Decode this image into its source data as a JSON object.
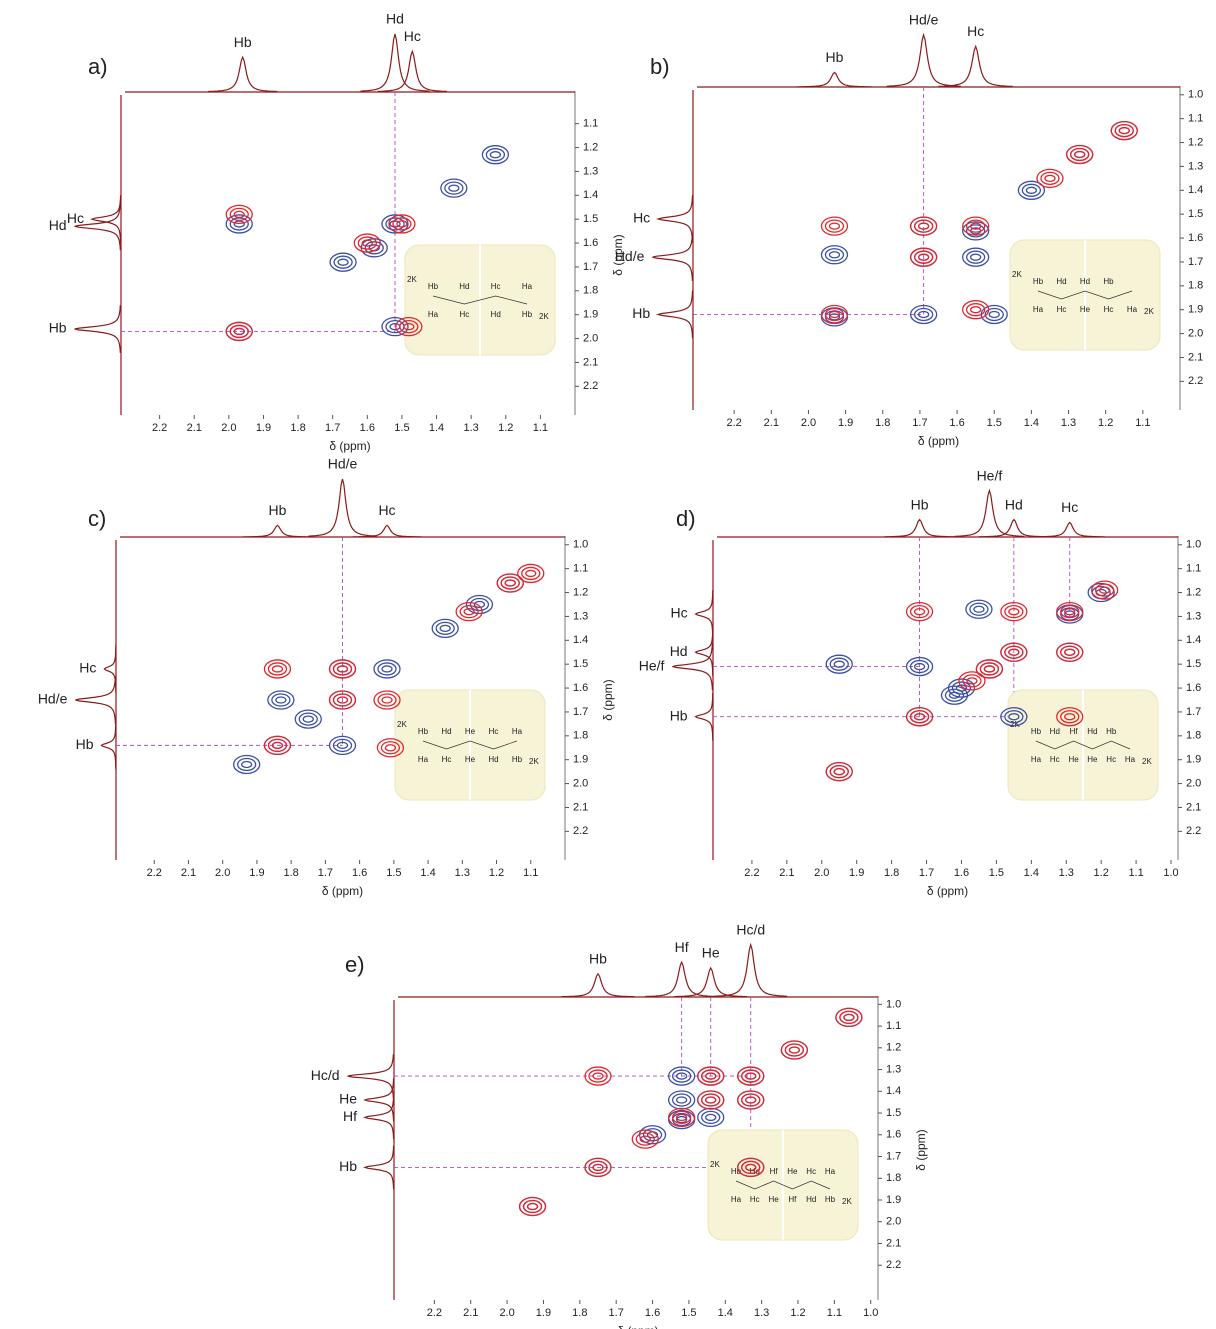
{
  "chart_data": [
    {
      "type": "contour",
      "panel": "a)",
      "xlabel": "δ (ppm)",
      "ylabel": "δ (ppm)",
      "xlim": [
        2.3,
        1.0
      ],
      "ylim": [
        0.98,
        2.32
      ],
      "xticks": [
        2.2,
        2.1,
        {
          "value": 2,
          "label": "2.0"
        },
        1.9,
        1.8,
        1.7,
        1.6,
        1.5,
        1.4,
        1.3,
        1.2,
        1.1
      ],
      "yticks": [
        1.1,
        1.2,
        1.3,
        1.4,
        1.5,
        1.6,
        1.7,
        1.8,
        1.9,
        {
          "value": 2,
          "label": "2.0"
        },
        2.1,
        2.2
      ],
      "top_peaks": {
        "labels": [
          "Hb",
          "Hd",
          "Hc"
        ],
        "x": [
          1.96,
          1.52,
          1.47
        ],
        "height": [
          0.6,
          1.0,
          0.7
        ]
      },
      "left_peaks": {
        "labels": [
          "Hc",
          "Hd",
          "Hb"
        ],
        "y": [
          1.5,
          1.53,
          1.96
        ],
        "height": [
          0.5,
          0.8,
          0.8
        ]
      },
      "series": [
        {
          "name": "blue",
          "color": "#3b4fa8",
          "points": [
            [
              1.97,
              1.52
            ],
            [
              1.97,
              1.97
            ],
            [
              1.52,
              1.95
            ],
            [
              1.52,
              1.52
            ],
            [
              1.35,
              1.37
            ],
            [
              1.23,
              1.23
            ],
            [
              1.67,
              1.68
            ],
            [
              1.58,
              1.62
            ]
          ]
        },
        {
          "name": "red",
          "color": "#e3262b",
          "points": [
            [
              1.97,
              1.48
            ],
            [
              1.97,
              1.97
            ],
            [
              1.48,
              1.95
            ],
            [
              1.5,
              1.52
            ],
            [
              1.6,
              1.6
            ]
          ]
        }
      ],
      "vguides": [
        [
          1.52,
          1.97
        ]
      ],
      "hguides": [
        [
          1.97,
          1.52
        ]
      ],
      "inset": {
        "top": [
          "Hb",
          "Hd",
          "Hc",
          "Ha"
        ],
        "bottom": [
          "Ha",
          "Hc",
          "Hd",
          "Hb"
        ],
        "charge": "2K"
      }
    },
    {
      "type": "contour",
      "panel": "b)",
      "xlabel": "δ (ppm)",
      "ylabel": "δ (ppm)",
      "xlim": [
        2.3,
        1.0
      ],
      "ylim": [
        0.98,
        2.32
      ],
      "xticks": [
        2.2,
        2.1,
        {
          "value": 2,
          "label": "2.0"
        },
        1.9,
        1.8,
        1.7,
        1.6,
        1.5,
        1.4,
        1.3,
        1.2,
        1.1
      ],
      "yticks": [
        {
          "value": 1,
          "label": "1.0"
        },
        1.1,
        1.2,
        1.3,
        1.4,
        1.5,
        1.6,
        1.7,
        1.8,
        1.9,
        {
          "value": 2,
          "label": "2.0"
        },
        2.1,
        2.2
      ],
      "top_peaks": {
        "labels": [
          "Hb",
          "Hd/e",
          "Hc"
        ],
        "x": [
          1.93,
          1.69,
          1.55
        ],
        "height": [
          0.25,
          0.9,
          0.7
        ]
      },
      "left_peaks": {
        "labels": [
          "Hc",
          "Hd/e",
          "Hb"
        ],
        "y": [
          1.52,
          1.68,
          1.92
        ],
        "height": [
          0.6,
          0.7,
          0.6
        ]
      },
      "series": [
        {
          "name": "blue",
          "color": "#3b4fa8",
          "points": [
            [
              1.93,
              1.93
            ],
            [
              1.93,
              1.67
            ],
            [
              1.69,
              1.55
            ],
            [
              1.69,
              1.68
            ],
            [
              1.55,
              1.57
            ],
            [
              1.55,
              1.68
            ],
            [
              1.69,
              1.92
            ],
            [
              1.5,
              1.92
            ],
            [
              1.27,
              1.25
            ],
            [
              1.15,
              1.15
            ],
            [
              1.4,
              1.4
            ]
          ]
        },
        {
          "name": "red",
          "color": "#e3262b",
          "points": [
            [
              1.93,
              1.55
            ],
            [
              1.93,
              1.92
            ],
            [
              1.69,
              1.55
            ],
            [
              1.55,
              1.55
            ],
            [
              1.55,
              1.9
            ],
            [
              1.27,
              1.25
            ],
            [
              1.15,
              1.15
            ],
            [
              1.35,
              1.35
            ],
            [
              1.69,
              1.68
            ]
          ]
        }
      ],
      "vguides": [
        [
          1.69,
          1.92
        ]
      ],
      "hguides": [
        [
          1.92,
          1.69
        ]
      ],
      "inset": {
        "top": [
          "Hb",
          "Hd",
          "Hd",
          "Hb"
        ],
        "bottom": [
          "Ha",
          "Hc",
          "He",
          "Hc",
          "Ha"
        ],
        "charge": "2K"
      }
    },
    {
      "type": "contour",
      "panel": "c)",
      "xlabel": "δ (ppm)",
      "ylabel": "δ (ppm)",
      "xlim": [
        2.3,
        1.0
      ],
      "ylim": [
        0.98,
        2.32
      ],
      "xticks": [
        2.2,
        2.1,
        {
          "value": 2,
          "label": "2.0"
        },
        1.9,
        1.8,
        1.7,
        1.6,
        1.5,
        1.4,
        1.3,
        1.2,
        1.1
      ],
      "yticks": [
        {
          "value": 1,
          "label": "1.0"
        },
        1.1,
        1.2,
        1.3,
        1.4,
        1.5,
        1.6,
        1.7,
        1.8,
        1.9,
        {
          "value": 2,
          "label": "2.0"
        },
        2.1,
        2.2
      ],
      "top_peaks": {
        "labels": [
          "Hb",
          "Hd/e",
          "Hc"
        ],
        "x": [
          1.84,
          1.65,
          1.52
        ],
        "height": [
          0.2,
          1.0,
          0.2
        ]
      },
      "left_peaks": {
        "labels": [
          "Hc",
          "Hd/e",
          "Hb"
        ],
        "y": [
          1.52,
          1.65,
          1.84
        ],
        "height": [
          0.2,
          0.7,
          0.25
        ]
      },
      "series": [
        {
          "name": "blue",
          "color": "#3b4fa8",
          "points": [
            [
              1.84,
              1.84
            ],
            [
              1.65,
              1.52
            ],
            [
              1.65,
              1.84
            ],
            [
              1.65,
              1.65
            ],
            [
              1.52,
              1.52
            ],
            [
              1.75,
              1.73
            ],
            [
              1.93,
              1.92
            ],
            [
              1.35,
              1.35
            ],
            [
              1.16,
              1.16
            ],
            [
              1.25,
              1.25
            ],
            [
              1.83,
              1.65
            ]
          ]
        },
        {
          "name": "red",
          "color": "#e3262b",
          "points": [
            [
              1.84,
              1.52
            ],
            [
              1.51,
              1.85
            ],
            [
              1.84,
              1.84
            ],
            [
              1.65,
              1.65
            ],
            [
              1.52,
              1.65
            ],
            [
              1.65,
              1.52
            ],
            [
              1.28,
              1.28
            ],
            [
              1.16,
              1.16
            ],
            [
              1.1,
              1.12
            ]
          ]
        }
      ],
      "vguides": [
        [
          1.65,
          1.84
        ]
      ],
      "hguides": [
        [
          1.84,
          1.65
        ]
      ],
      "inset": {
        "top": [
          "Hb",
          "Hd",
          "He",
          "Hc",
          "Ha"
        ],
        "bottom": [
          "Ha",
          "Hc",
          "He",
          "Hd",
          "Hb"
        ],
        "charge": "2K"
      }
    },
    {
      "type": "contour",
      "panel": "d)",
      "xlabel": "δ (ppm)",
      "ylabel": "δ (ppm)",
      "xlim": [
        2.3,
        0.98
      ],
      "ylim": [
        0.98,
        2.32
      ],
      "xticks": [
        2.2,
        2.1,
        {
          "value": 2,
          "label": "2.0"
        },
        1.9,
        1.8,
        1.7,
        1.6,
        1.5,
        1.4,
        1.3,
        1.2,
        1.1,
        {
          "value": 1,
          "label": "1.0"
        }
      ],
      "yticks": [
        {
          "value": 1,
          "label": "1.0"
        },
        1.1,
        1.2,
        1.3,
        1.4,
        1.5,
        1.6,
        1.7,
        1.8,
        1.9,
        {
          "value": 2,
          "label": "2.0"
        },
        2.1,
        2.2
      ],
      "top_peaks": {
        "labels": [
          "Hb",
          "He/f",
          "Hd",
          "Hc"
        ],
        "x": [
          1.72,
          1.52,
          1.45,
          1.29
        ],
        "height": [
          0.3,
          0.8,
          0.3,
          0.25
        ]
      },
      "left_peaks": {
        "labels": [
          "Hc",
          "Hd",
          "He/f",
          "Hb"
        ],
        "y": [
          1.29,
          1.45,
          1.51,
          1.72
        ],
        "height": [
          0.3,
          0.3,
          0.7,
          0.3
        ]
      },
      "series": [
        {
          "name": "blue",
          "color": "#3b4fa8",
          "points": [
            [
              1.72,
              1.72
            ],
            [
              1.72,
              1.51
            ],
            [
              1.95,
              1.95
            ],
            [
              1.95,
              1.5
            ],
            [
              1.45,
              1.45
            ],
            [
              1.45,
              1.72
            ],
            [
              1.29,
              1.29
            ],
            [
              1.29,
              1.45
            ],
            [
              1.6,
              1.6
            ],
            [
              1.2,
              1.2
            ],
            [
              1.55,
              1.27
            ],
            [
              1.62,
              1.63
            ],
            [
              1.52,
              1.52
            ]
          ]
        },
        {
          "name": "red",
          "color": "#e3262b",
          "points": [
            [
              1.72,
              1.28
            ],
            [
              1.72,
              1.72
            ],
            [
              1.45,
              1.28
            ],
            [
              1.45,
              1.45
            ],
            [
              1.29,
              1.28
            ],
            [
              1.29,
              1.45
            ],
            [
              1.29,
              1.72
            ],
            [
              1.95,
              1.95
            ],
            [
              1.57,
              1.57
            ],
            [
              1.19,
              1.19
            ],
            [
              1.52,
              1.52
            ]
          ]
        }
      ],
      "vguides": [
        [
          1.72,
          1.72
        ],
        [
          1.45,
          1.73
        ],
        [
          1.29,
          1.3
        ]
      ],
      "hguides": [
        [
          1.51,
          1.72
        ],
        [
          1.72,
          1.45
        ]
      ],
      "inset": {
        "top": [
          "Hb",
          "Hd",
          "Hf",
          "Hd",
          "Hb"
        ],
        "bottom": [
          "Ha",
          "Hc",
          "He",
          "He",
          "Hc",
          "Ha"
        ],
        "charge": "2K"
      }
    },
    {
      "type": "contour",
      "panel": "e)",
      "xlabel": "δ (ppm)",
      "ylabel": "δ (ppm)",
      "xlim": [
        2.3,
        0.98
      ],
      "ylim": [
        0.98,
        2.36
      ],
      "xticks": [
        2.2,
        2.1,
        {
          "value": 2,
          "label": "2.0"
        },
        1.9,
        1.8,
        1.7,
        1.6,
        1.5,
        1.4,
        1.3,
        1.2,
        1.1,
        {
          "value": 1,
          "label": "1.0"
        }
      ],
      "yticks": [
        {
          "value": 1,
          "label": "1.0"
        },
        1.1,
        1.2,
        1.3,
        1.4,
        1.5,
        1.6,
        1.7,
        1.8,
        1.9,
        {
          "value": 2,
          "label": "2.0"
        },
        2.1,
        2.2
      ],
      "top_peaks": {
        "labels": [
          "Hb",
          "Hf",
          "He",
          "Hc/d"
        ],
        "x": [
          1.75,
          1.52,
          1.44,
          1.33
        ],
        "height": [
          0.4,
          0.6,
          0.5,
          0.9
        ]
      },
      "left_peaks": {
        "labels": [
          "Hc/d",
          "He",
          "Hf",
          "Hb"
        ],
        "y": [
          1.33,
          1.44,
          1.52,
          1.75
        ],
        "height": [
          0.8,
          0.5,
          0.5,
          0.5
        ]
      },
      "series": [
        {
          "name": "blue",
          "color": "#3b4fa8",
          "points": [
            [
              1.75,
              1.75
            ],
            [
              1.93,
              1.93
            ],
            [
              1.52,
              1.33
            ],
            [
              1.52,
              1.44
            ],
            [
              1.52,
              1.53
            ],
            [
              1.44,
              1.33
            ],
            [
              1.44,
              1.44
            ],
            [
              1.44,
              1.52
            ],
            [
              1.33,
              1.33
            ],
            [
              1.33,
              1.44
            ],
            [
              1.6,
              1.6
            ],
            [
              1.21,
              1.21
            ],
            [
              1.06,
              1.06
            ],
            [
              1.33,
              1.75
            ]
          ]
        },
        {
          "name": "red",
          "color": "#e3262b",
          "points": [
            [
              1.75,
              1.33
            ],
            [
              1.75,
              1.75
            ],
            [
              1.44,
              1.33
            ],
            [
              1.33,
              1.33
            ],
            [
              1.33,
              1.44
            ],
            [
              1.44,
              1.44
            ],
            [
              1.52,
              1.52
            ],
            [
              1.33,
              1.75
            ],
            [
              1.21,
              1.21
            ],
            [
              1.06,
              1.06
            ],
            [
              1.93,
              1.93
            ],
            [
              1.62,
              1.62
            ]
          ]
        }
      ],
      "vguides": [
        [
          1.52,
          1.33
        ],
        [
          1.44,
          1.33
        ],
        [
          1.33,
          1.75
        ]
      ],
      "hguides": [
        [
          1.33,
          1.33
        ],
        [
          1.75,
          1.33
        ]
      ],
      "inset": {
        "top": [
          "Hb",
          "Hd",
          "Hf",
          "He",
          "Hc",
          "Ha"
        ],
        "bottom": [
          "Ha",
          "Hc",
          "He",
          "Hf",
          "Hd",
          "Hb"
        ],
        "charge": "2K"
      }
    }
  ]
}
